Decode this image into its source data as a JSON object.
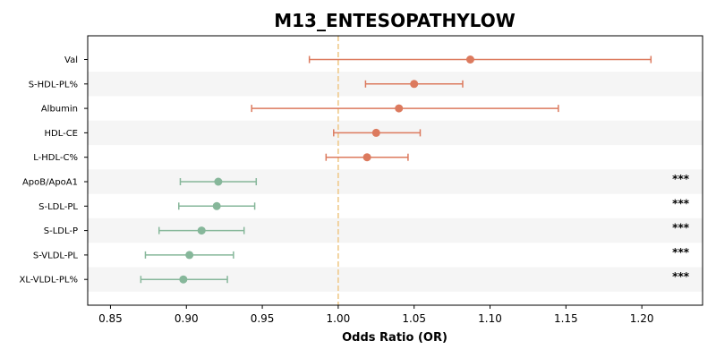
{
  "chart_data": {
    "type": "forest",
    "title": "M13_ENTESOPATHYLOW",
    "xlabel": "Odds Ratio (OR)",
    "xlim": [
      0.835,
      1.24
    ],
    "xticks": [
      "0.85",
      "0.90",
      "0.95",
      "1.00",
      "1.05",
      "1.10",
      "1.15",
      "1.20"
    ],
    "reference_line": 1.0,
    "colors": {
      "above": "#dc7a5e",
      "below": "#86b79a",
      "reference": "#f0c98a",
      "band": "#f5f5f5"
    },
    "rows": [
      {
        "label": "Val",
        "or": 1.087,
        "lo": 0.981,
        "hi": 1.206,
        "sig": ""
      },
      {
        "label": "S-HDL-PL%",
        "or": 1.05,
        "lo": 1.018,
        "hi": 1.082,
        "sig": ""
      },
      {
        "label": "Albumin",
        "or": 1.04,
        "lo": 0.943,
        "hi": 1.145,
        "sig": ""
      },
      {
        "label": "HDL-CE",
        "or": 1.025,
        "lo": 0.997,
        "hi": 1.054,
        "sig": ""
      },
      {
        "label": "L-HDL-C%",
        "or": 1.019,
        "lo": 0.992,
        "hi": 1.046,
        "sig": ""
      },
      {
        "label": "ApoB/ApoA1",
        "or": 0.921,
        "lo": 0.896,
        "hi": 0.946,
        "sig": "***"
      },
      {
        "label": "S-LDL-PL",
        "or": 0.92,
        "lo": 0.895,
        "hi": 0.945,
        "sig": "***"
      },
      {
        "label": "S-LDL-P",
        "or": 0.91,
        "lo": 0.882,
        "hi": 0.938,
        "sig": "***"
      },
      {
        "label": "S-VLDL-PL",
        "or": 0.902,
        "lo": 0.873,
        "hi": 0.931,
        "sig": "***"
      },
      {
        "label": "XL-VLDL-PL%",
        "or": 0.898,
        "lo": 0.87,
        "hi": 0.927,
        "sig": "***"
      }
    ]
  }
}
